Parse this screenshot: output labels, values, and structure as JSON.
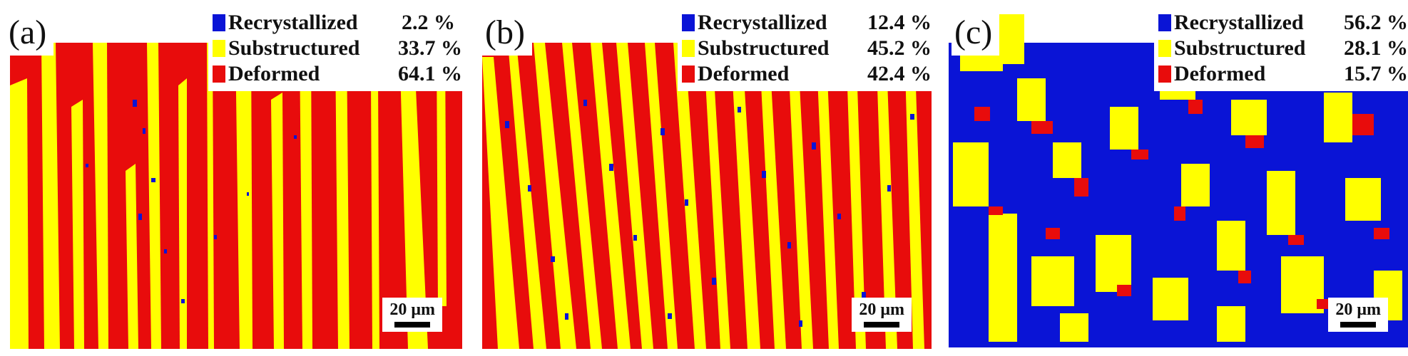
{
  "colors": {
    "recrystallized": "#0a14d6",
    "substructured": "#ffff00",
    "deformed": "#e80c0c"
  },
  "panels": [
    {
      "label": "(a)",
      "legend": [
        {
          "name": "Recrystallized",
          "value": "2.2 %"
        },
        {
          "name": "Substructured",
          "value": "33.7 %"
        },
        {
          "name": "Deformed",
          "value": "64.1 %"
        }
      ],
      "scale_bar": "20 μm"
    },
    {
      "label": "(b)",
      "legend": [
        {
          "name": "Recrystallized",
          "value": "12.4 %"
        },
        {
          "name": "Substructured",
          "value": "45.2 %"
        },
        {
          "name": "Deformed",
          "value": "42.4 %"
        }
      ],
      "scale_bar": "20 μm"
    },
    {
      "label": "(c)",
      "legend": [
        {
          "name": "Recrystallized",
          "value": "56.2 %"
        },
        {
          "name": "Substructured",
          "value": "28.1 %"
        },
        {
          "name": "Deformed",
          "value": "15.7 %"
        }
      ],
      "scale_bar": "20 μm"
    }
  ]
}
